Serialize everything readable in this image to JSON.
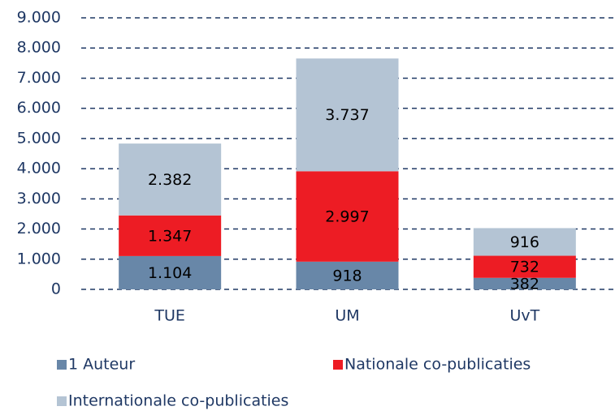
{
  "chart_data": {
    "type": "stacked_bar",
    "categories": [
      "TUE",
      "UM",
      "UvT"
    ],
    "series": [
      {
        "name": "1 Auteur",
        "color": "#6887a8",
        "values": [
          1104,
          918,
          382
        ],
        "value_labels": [
          "1.104",
          "918",
          "382"
        ]
      },
      {
        "name": "Nationale co-publicaties",
        "color": "#ed1c24",
        "values": [
          1347,
          2997,
          732
        ],
        "value_labels": [
          "1.347",
          "2.997",
          "732"
        ]
      },
      {
        "name": "Internationale co-publicaties",
        "color": "#b4c4d4",
        "values": [
          2382,
          3737,
          916
        ],
        "value_labels": [
          "2.382",
          "3.737",
          "916"
        ]
      }
    ],
    "ylim": [
      0,
      9000
    ],
    "yticks": [
      0,
      {
        "value": 1000,
        "label": "1.000"
      },
      {
        "value": 2000,
        "label": "2.000"
      },
      {
        "value": 3000,
        "label": "3.000"
      },
      {
        "value": 4000,
        "label": "4.000"
      },
      {
        "value": 5000,
        "label": "5.000"
      },
      {
        "value": 6000,
        "label": "6.000"
      },
      {
        "value": 7000,
        "label": "7.000"
      },
      {
        "value": 8000,
        "label": "8.000"
      },
      {
        "value": 9000,
        "label": "9.000"
      }
    ],
    "grid": true
  }
}
